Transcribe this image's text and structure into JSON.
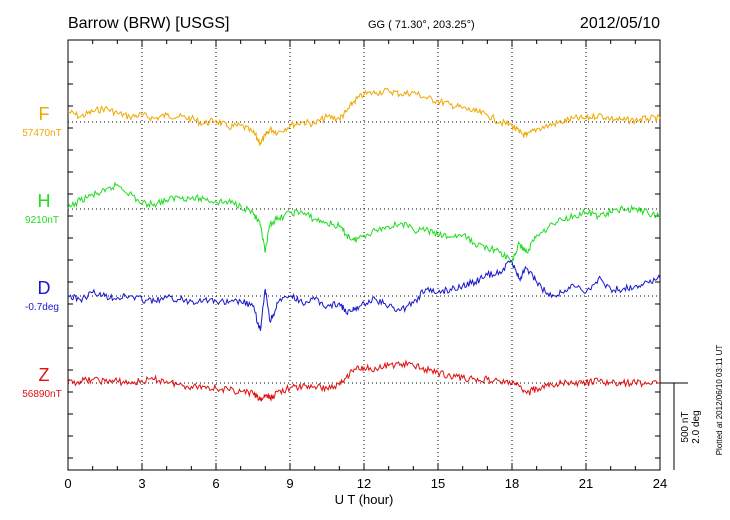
{
  "header": {
    "station": "Barrow (BRW)  [USGS]",
    "coords": "GG ( 71.30°, 203.25°)",
    "date": "2012/05/10"
  },
  "side_note": "Plotted at 2012/06/10 03:11  UT",
  "chart_data": {
    "type": "line",
    "xlabel": "U T (hour)",
    "xlim": [
      0,
      24
    ],
    "xticks": [
      "0",
      "3",
      "6",
      "9",
      "12",
      "15",
      "18",
      "21",
      "24"
    ],
    "scale_bar": {
      "line1": "500 nT",
      "line2": "2.0 deg"
    },
    "series": [
      {
        "name": "F",
        "baseline_label": "57470nT",
        "color": "#f0a800",
        "x": [
          0,
          0.5,
          1,
          1.5,
          2,
          2.5,
          3,
          3.5,
          4,
          4.5,
          5,
          5.5,
          6,
          6.5,
          7,
          7.5,
          7.8,
          8,
          8.2,
          8.5,
          9,
          9.5,
          10,
          10.5,
          11,
          11.3,
          11.6,
          12,
          12.5,
          13,
          13.5,
          14,
          14.5,
          15,
          15.5,
          16,
          16.5,
          17,
          17.5,
          18,
          18.3,
          18.6,
          19,
          19.5,
          20,
          20.5,
          21,
          21.5,
          22,
          22.5,
          23,
          23.5,
          24
        ],
        "y": [
          60,
          30,
          60,
          80,
          50,
          30,
          40,
          20,
          40,
          30,
          20,
          -10,
          10,
          -30,
          -20,
          -60,
          -120,
          -80,
          -40,
          -60,
          -20,
          0,
          -10,
          30,
          20,
          60,
          120,
          160,
          170,
          180,
          160,
          170,
          140,
          120,
          100,
          80,
          60,
          40,
          0,
          -20,
          -60,
          -80,
          -40,
          -20,
          0,
          20,
          20,
          40,
          20,
          10,
          10,
          20,
          20
        ]
      },
      {
        "name": "H",
        "baseline_label": "9210nT",
        "color": "#22dd22",
        "x": [
          0,
          0.5,
          1,
          1.5,
          2,
          2.5,
          3,
          3.5,
          4,
          4.5,
          5,
          5.5,
          6,
          6.5,
          7,
          7.5,
          7.8,
          8,
          8.2,
          8.5,
          9,
          9.5,
          10,
          10.5,
          11,
          11.3,
          11.6,
          12,
          12.5,
          13,
          13.5,
          14,
          14.5,
          15,
          15.5,
          16,
          16.5,
          17,
          17.5,
          18,
          18.3,
          18.6,
          19,
          19.5,
          20,
          20.5,
          21,
          21.5,
          22,
          22.5,
          23,
          23.5,
          24
        ],
        "y": [
          0,
          50,
          80,
          100,
          140,
          90,
          30,
          30,
          50,
          70,
          60,
          60,
          40,
          40,
          20,
          -20,
          -100,
          -250,
          -80,
          -60,
          -20,
          -20,
          -60,
          -80,
          -100,
          -150,
          -180,
          -150,
          -120,
          -100,
          -80,
          -120,
          -120,
          -150,
          -160,
          -150,
          -200,
          -220,
          -250,
          -300,
          -200,
          -250,
          -150,
          -100,
          -60,
          -40,
          -20,
          -40,
          -20,
          0,
          0,
          -20,
          -40
        ]
      },
      {
        "name": "D",
        "baseline_label": "-0.7deg",
        "color": "#1818cc",
        "x": [
          0,
          0.5,
          1,
          1.5,
          2,
          2.5,
          3,
          3.5,
          4,
          4.5,
          5,
          5.5,
          6,
          6.5,
          7,
          7.5,
          7.8,
          8,
          8.2,
          8.5,
          9,
          9.5,
          10,
          10.5,
          11,
          11.3,
          11.6,
          12,
          12.5,
          13,
          13.5,
          14,
          14.5,
          15,
          15.5,
          16,
          16.5,
          17,
          17.5,
          18,
          18.3,
          18.6,
          19,
          19.5,
          20,
          20.5,
          21,
          21.5,
          22,
          22.5,
          23,
          23.5,
          24
        ],
        "y": [
          0,
          -20,
          20,
          0,
          -10,
          0,
          -20,
          -30,
          -10,
          -20,
          -30,
          -20,
          -30,
          -40,
          -30,
          -60,
          -200,
          40,
          -150,
          -40,
          0,
          -40,
          -20,
          -60,
          -40,
          -100,
          -80,
          -40,
          -20,
          -60,
          -80,
          -40,
          40,
          20,
          40,
          60,
          80,
          120,
          140,
          200,
          100,
          160,
          80,
          0,
          20,
          60,
          20,
          100,
          40,
          40,
          60,
          80,
          100
        ]
      },
      {
        "name": "Z",
        "baseline_label": "56890nT",
        "color": "#e01010",
        "x": [
          0,
          0.5,
          1,
          1.5,
          2,
          2.5,
          3,
          3.5,
          4,
          4.5,
          5,
          5.5,
          6,
          6.5,
          7,
          7.5,
          7.8,
          8,
          8.2,
          8.5,
          9,
          9.5,
          10,
          10.5,
          11,
          11.3,
          11.6,
          12,
          12.5,
          13,
          13.5,
          14,
          14.5,
          15,
          15.5,
          16,
          16.5,
          17,
          17.5,
          18,
          18.3,
          18.6,
          19,
          19.5,
          20,
          20.5,
          21,
          21.5,
          22,
          22.5,
          23,
          23.5,
          24
        ],
        "y": [
          0,
          10,
          20,
          10,
          10,
          0,
          10,
          20,
          10,
          -10,
          -20,
          -20,
          -30,
          -40,
          -50,
          -60,
          -100,
          -70,
          -90,
          -50,
          -30,
          -20,
          -20,
          -30,
          -10,
          40,
          80,
          90,
          80,
          100,
          110,
          100,
          80,
          60,
          40,
          30,
          20,
          20,
          10,
          0,
          -20,
          -60,
          -30,
          -20,
          0,
          0,
          0,
          10,
          0,
          0,
          0,
          0,
          0
        ]
      }
    ]
  }
}
